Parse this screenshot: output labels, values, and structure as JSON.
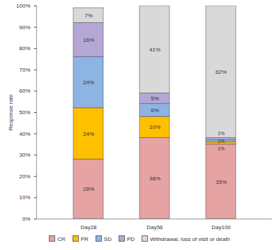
{
  "chart_data": {
    "type": "bar",
    "stacked": true,
    "data_labels": true,
    "grid": false,
    "legend": "bottom",
    "ylabel": "Response rate",
    "categories": [
      "Day28",
      "Day56",
      "Day100"
    ],
    "series": [
      {
        "name": "CR",
        "color": "#e6a3a3",
        "values": [
          28,
          38,
          35
        ],
        "value_labels": [
          "28%",
          "38%",
          "35%"
        ]
      },
      {
        "name": "PR",
        "color": "#ffc000",
        "values": [
          24,
          10,
          1
        ],
        "value_labels": [
          "24%",
          "10%",
          "1%"
        ]
      },
      {
        "name": "SD",
        "color": "#8db4e2",
        "values": [
          24,
          6,
          1
        ],
        "value_labels": [
          "24%",
          "6%",
          "1%"
        ]
      },
      {
        "name": "PD",
        "color": "#b4a7d6",
        "values": [
          16,
          5,
          1
        ],
        "value_labels": [
          "16%",
          "5%",
          "1%"
        ]
      },
      {
        "name": "Withdrawal, loss of visit or death",
        "color": "#d9d9d9",
        "values": [
          7,
          41,
          62
        ],
        "value_labels": [
          "7%",
          "41%",
          "62%"
        ]
      }
    ],
    "ylim": [
      0,
      100
    ],
    "yticks": [
      {
        "value": 0,
        "label": "0%"
      },
      {
        "value": 10,
        "label": "10%"
      },
      {
        "value": 20,
        "label": "20%"
      },
      {
        "value": 30,
        "label": "30%"
      },
      {
        "value": 40,
        "label": "40%"
      },
      {
        "value": 50,
        "label": "50%"
      },
      {
        "value": 60,
        "label": "60%"
      },
      {
        "value": 70,
        "label": "70%"
      },
      {
        "value": 80,
        "label": "80%"
      },
      {
        "value": 90,
        "label": "90%"
      },
      {
        "value": 100,
        "label": "100%"
      }
    ]
  }
}
